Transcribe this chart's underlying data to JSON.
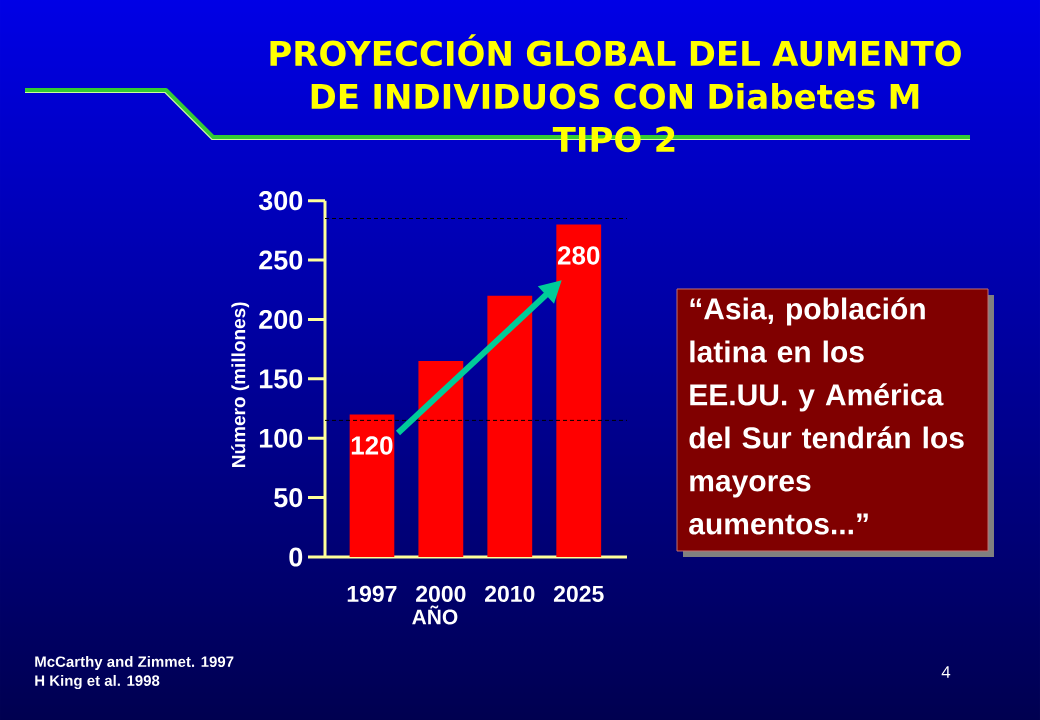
{
  "chart_data": {
    "type": "bar",
    "title": "PROYECCIÓN GLOBAL DEL AUMENTO DE INDIVIDUOS CON Diabetes M TIPO 2",
    "xlabel": "AÑO",
    "ylabel": "Número (millones)",
    "categories": [
      "1997",
      "2000",
      "2010",
      "2025"
    ],
    "values": [
      120,
      165,
      220,
      280
    ],
    "value_labels": [
      "120",
      null,
      null,
      "280"
    ],
    "color": "#ff0000",
    "ylim": [
      0,
      300
    ],
    "yticks": [
      0,
      50,
      100,
      150,
      200,
      250,
      300
    ],
    "ref_lines": [
      {
        "axis": "y",
        "value": 115,
        "line_style": "dashed",
        "color": "#000000"
      },
      {
        "axis": "y",
        "value": 285,
        "line_style": "dashed",
        "color": "#000000"
      }
    ],
    "annotations": [
      "“Asia, población latina en los EE.UU. y América del Sur tendrán los mayores aumentos...”",
      "McCarthy and Zimmet. 1997",
      "H King et al. 1998",
      "4"
    ]
  }
}
